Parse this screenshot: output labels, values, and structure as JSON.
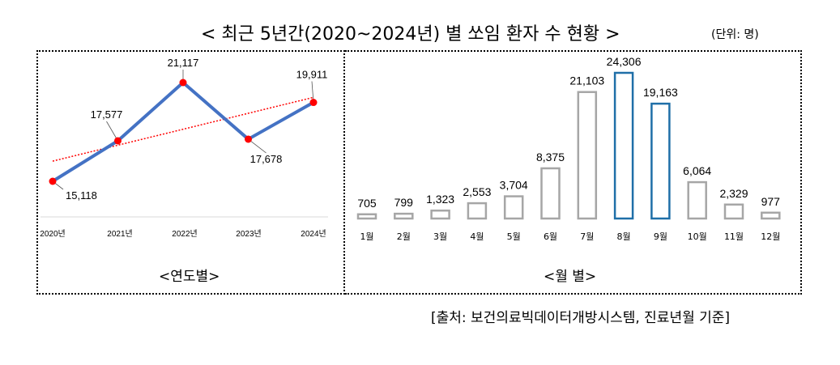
{
  "title": "< 최근 5년간(2020~2024년) 별 쏘임 환자 수 현황 >",
  "unit": "(단위: 명)",
  "source": "[출처: 보건의료빅데이터개방시스템, 진료년월 기준]",
  "chart_data": [
    {
      "type": "line",
      "caption": "<연도별>",
      "categories": [
        "2020년",
        "2021년",
        "2022년",
        "2023년",
        "2024년"
      ],
      "values": [
        15118,
        17577,
        21117,
        17678,
        19911
      ],
      "value_labels": [
        "15,118",
        "17,577",
        "21,117",
        "17,678",
        "19,911"
      ],
      "trendline": true,
      "colors": {
        "line": "#4472c4",
        "marker": "#ff0000",
        "trend": "#ff0000"
      }
    },
    {
      "type": "bar",
      "caption": "<월 별>",
      "categories": [
        "1월",
        "2월",
        "3월",
        "4월",
        "5월",
        "6월",
        "7월",
        "8월",
        "9월",
        "10월",
        "11월",
        "12월"
      ],
      "values": [
        705,
        799,
        1323,
        2553,
        3704,
        8375,
        21103,
        24306,
        19163,
        6064,
        2329,
        977
      ],
      "value_labels": [
        "705",
        "799",
        "1,323",
        "2,553",
        "3,704",
        "8,375",
        "21,103",
        "24,306",
        "19,163",
        "6,064",
        "2,329",
        "977"
      ],
      "highlighted": [
        "8월",
        "9월"
      ],
      "colors": {
        "bar": "#a6a6a6",
        "highlight": "#1f6fa8"
      }
    }
  ]
}
